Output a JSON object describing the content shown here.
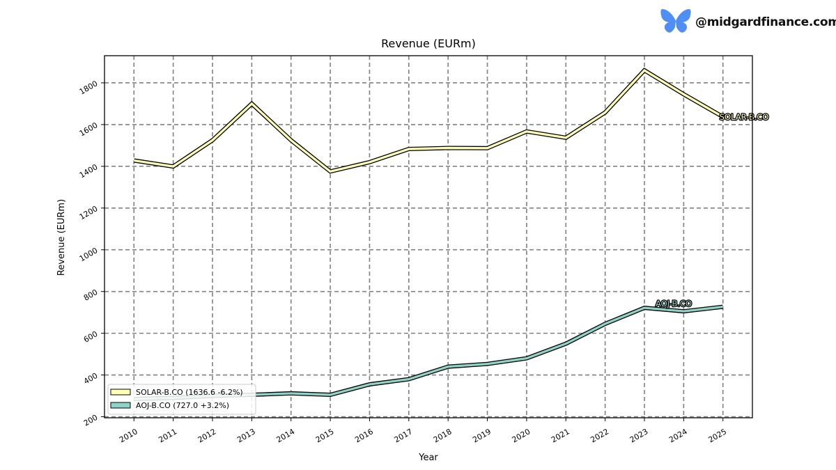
{
  "brand": {
    "handle": "@midgardfinance.com",
    "icon": "butterfly-icon",
    "icon_color": "#4f8ff5"
  },
  "chart_data": {
    "type": "line",
    "title": "Revenue (EURm)",
    "xlabel": "Year",
    "ylabel": "Revenue (EURm)",
    "x": [
      2010,
      2011,
      2012,
      2013,
      2014,
      2015,
      2016,
      2017,
      2018,
      2019,
      2020,
      2021,
      2022,
      2023,
      2024,
      2025
    ],
    "xlim": [
      2009.25,
      2025.75
    ],
    "ylim": [
      195,
      1930
    ],
    "yticks": [
      200,
      400,
      600,
      800,
      1000,
      1200,
      1400,
      1600,
      1800
    ],
    "grid": true,
    "legend_position": "lower-left",
    "series": [
      {
        "name": "SOLAR-B.CO",
        "legend_label": "SOLAR-B.CO (1636.6 -6.2%)",
        "end_label": "SOLAR-B.CO",
        "color": "#ffffb3",
        "values": [
          1428,
          1399,
          1525,
          1700,
          1525,
          1375,
          1420,
          1483,
          1488,
          1487,
          1567,
          1537,
          1658,
          1860,
          1745,
          1637
        ]
      },
      {
        "name": "AOJ-B.CO",
        "legend_label": "AOJ-B.CO (727.0 +3.2%)",
        "end_label": "AOJ-B.CO",
        "color": "#8dd3c7",
        "values": [
          285,
          290,
          300,
          305,
          312,
          305,
          355,
          380,
          440,
          453,
          480,
          550,
          645,
          722,
          705,
          727
        ]
      }
    ]
  }
}
